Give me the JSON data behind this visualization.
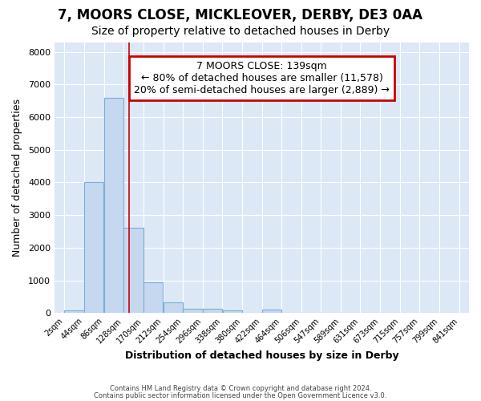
{
  "title1": "7, MOORS CLOSE, MICKLEOVER, DERBY, DE3 0AA",
  "title2": "Size of property relative to detached houses in Derby",
  "xlabel": "Distribution of detached houses by size in Derby",
  "ylabel": "Number of detached properties",
  "bar_color": "#c5d8f0",
  "bar_edge_color": "#7aaed6",
  "background_color": "#dce8f5",
  "fig_background_color": "#ffffff",
  "grid_color": "#ffffff",
  "annotation_text": "7 MOORS CLOSE: 139sqm\n← 80% of detached houses are smaller (11,578)\n20% of semi-detached houses are larger (2,889) →",
  "red_line_x": 139,
  "red_line_color": "#cc0000",
  "annotation_box_color": "#ffffff",
  "annotation_box_edge": "#cc0000",
  "bin_edges": [
    2,
    44,
    86,
    128,
    170,
    212,
    254,
    296,
    338,
    380,
    422,
    464,
    506,
    547,
    589,
    631,
    673,
    715,
    757,
    799,
    841
  ],
  "bar_heights": [
    80,
    4000,
    6600,
    2600,
    950,
    320,
    130,
    120,
    80,
    0,
    100,
    0,
    0,
    0,
    0,
    0,
    0,
    0,
    0,
    0
  ],
  "tick_labels": [
    "2sqm",
    "44sqm",
    "86sqm",
    "128sqm",
    "170sqm",
    "212sqm",
    "254sqm",
    "296sqm",
    "338sqm",
    "380sqm",
    "422sqm",
    "464sqm",
    "506sqm",
    "547sqm",
    "589sqm",
    "631sqm",
    "673sqm",
    "715sqm",
    "757sqm",
    "799sqm",
    "841sqm"
  ],
  "ylim": [
    0,
    8300
  ],
  "yticks": [
    0,
    1000,
    2000,
    3000,
    4000,
    5000,
    6000,
    7000,
    8000
  ],
  "footer1": "Contains HM Land Registry data © Crown copyright and database right 2024.",
  "footer2": "Contains public sector information licensed under the Open Government Licence v3.0.",
  "title1_fontsize": 12,
  "title2_fontsize": 10,
  "annotation_fontsize": 9
}
